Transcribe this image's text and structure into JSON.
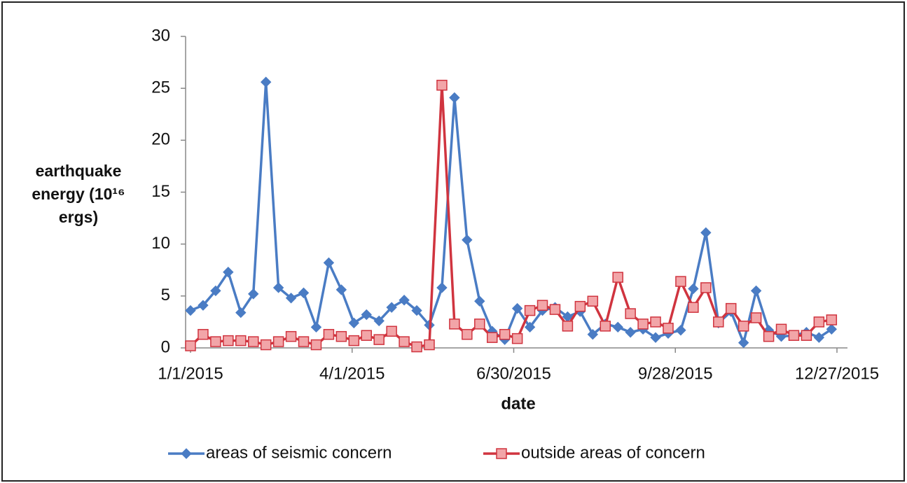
{
  "chart_data": {
    "type": "line",
    "y_label": "earthquake energy (10¹⁶ ergs)",
    "x_label": "date",
    "x": [
      "1/1/2015",
      "1/8/2015",
      "1/15/2015",
      "1/22/2015",
      "1/29/2015",
      "2/5/2015",
      "2/12/2015",
      "2/19/2015",
      "2/26/2015",
      "3/5/2015",
      "3/12/2015",
      "3/19/2015",
      "3/26/2015",
      "4/2/2015",
      "4/9/2015",
      "4/16/2015",
      "4/23/2015",
      "4/30/2015",
      "5/7/2015",
      "5/14/2015",
      "5/21/2015",
      "5/28/2015",
      "6/4/2015",
      "6/11/2015",
      "6/18/2015",
      "6/25/2015",
      "7/2/2015",
      "7/9/2015",
      "7/16/2015",
      "7/23/2015",
      "7/30/2015",
      "8/6/2015",
      "8/13/2015",
      "8/20/2015",
      "8/27/2015",
      "9/3/2015",
      "9/10/2015",
      "9/17/2015",
      "9/24/2015",
      "10/1/2015",
      "10/8/2015",
      "10/15/2015",
      "10/22/2015",
      "10/29/2015",
      "11/5/2015",
      "11/12/2015",
      "11/19/2015",
      "11/26/2015",
      "12/3/2015",
      "12/10/2015",
      "12/17/2015",
      "12/24/2015"
    ],
    "series": [
      {
        "name": "areas of seismic concern",
        "color": "#4a7cc4",
        "marker": "diamond",
        "values": [
          3.6,
          4.1,
          5.5,
          7.3,
          3.4,
          5.2,
          25.6,
          5.8,
          4.8,
          5.3,
          2.0,
          8.2,
          5.6,
          2.4,
          3.2,
          2.6,
          3.9,
          4.6,
          3.6,
          2.2,
          5.8,
          24.1,
          10.4,
          4.5,
          1.6,
          0.8,
          3.8,
          2.0,
          3.6,
          3.9,
          3.0,
          3.5,
          1.3,
          2.3,
          2.0,
          1.5,
          1.8,
          1.0,
          1.4,
          1.7,
          5.7,
          11.1,
          2.4,
          3.5,
          0.5,
          5.5,
          1.7,
          1.1,
          1.2,
          1.5,
          1.0,
          1.8
        ]
      },
      {
        "name": "outside areas of concern",
        "color": "#d0343f",
        "marker": "square",
        "values": [
          0.2,
          1.3,
          0.6,
          0.7,
          0.7,
          0.6,
          0.3,
          0.6,
          1.1,
          0.6,
          0.3,
          1.3,
          1.1,
          0.7,
          1.2,
          0.8,
          1.6,
          0.6,
          0.1,
          0.3,
          25.3,
          2.3,
          1.3,
          2.3,
          1.0,
          1.3,
          0.9,
          3.6,
          4.1,
          3.7,
          2.1,
          4.0,
          4.5,
          2.1,
          6.8,
          3.3,
          2.3,
          2.5,
          1.9,
          6.4,
          3.9,
          5.8,
          2.5,
          3.8,
          2.1,
          2.9,
          1.1,
          1.8,
          1.2,
          1.2,
          2.5,
          2.7
        ]
      }
    ],
    "xlim": [
      "1/1/2015",
      "12/27/2015"
    ],
    "xticks": [
      "1/1/2015",
      "4/1/2015",
      "6/30/2015",
      "9/28/2015",
      "12/27/2015"
    ],
    "ylim": [
      0,
      30
    ],
    "yticks": [
      0,
      5,
      10,
      15,
      20,
      25,
      30
    ],
    "grid": false,
    "legend": "bottom"
  }
}
